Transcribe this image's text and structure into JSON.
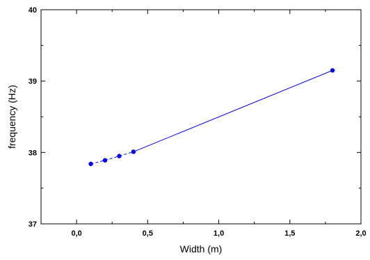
{
  "chart_data": {
    "type": "line",
    "title": "",
    "xlabel": "Width (m)",
    "ylabel": "frequency (Hz)",
    "xlim": [
      -0.25,
      2.0
    ],
    "ylim": [
      37,
      40
    ],
    "x_ticks": [
      0.0,
      0.5,
      1.0,
      1.5,
      2.0
    ],
    "x_tick_labels": [
      "0,0",
      "0,5",
      "1,0",
      "1,5",
      "2,0"
    ],
    "y_ticks": [
      37,
      38,
      39,
      40
    ],
    "y_tick_labels": [
      "37",
      "38",
      "39",
      "40"
    ],
    "grid": false,
    "legend": "none",
    "series": [
      {
        "x": [
          0.1,
          0.2,
          0.3,
          0.4,
          1.8
        ],
        "y": [
          37.84,
          37.89,
          37.95,
          38.01,
          39.15
        ],
        "color": "#0000ff",
        "line_styles": [
          "dashed",
          "dashed",
          "dashed",
          "solid"
        ]
      }
    ],
    "axis_color": "#000000"
  }
}
